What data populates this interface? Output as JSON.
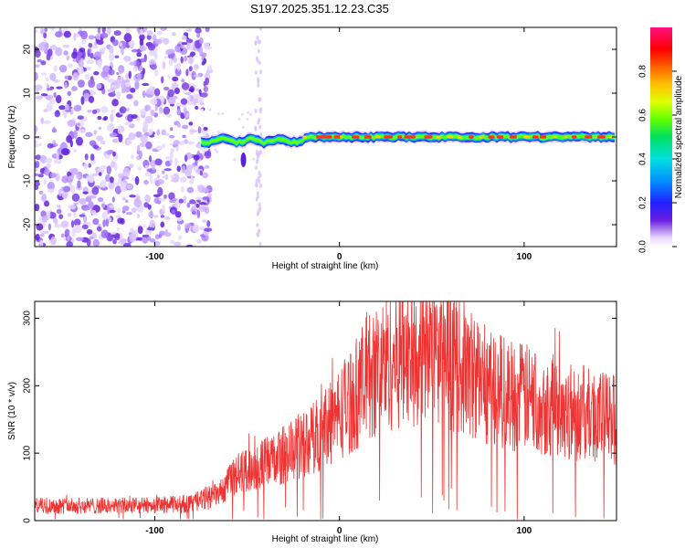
{
  "title": "S197.2025.351.12.23.C35",
  "chart_data": [
    {
      "type": "heatmap",
      "name": "spectrogram",
      "xlabel": "Height of straight line (km)",
      "ylabel": "Frequency (Hz)",
      "xlim": [
        -165,
        150
      ],
      "ylim": [
        -25,
        25
      ],
      "x_ticks": [
        -100,
        0,
        100
      ],
      "y_ticks": [
        -20,
        -10,
        0,
        10,
        20
      ],
      "noise_region_x": [
        -165,
        -70
      ],
      "signal_start_x": -75,
      "signal_freq_hz": 0,
      "colorbar": {
        "label": "Normalized spectral amplitude",
        "range": [
          0.0,
          1.0
        ],
        "ticks": [
          0.0,
          0.2,
          0.4,
          0.6,
          0.8
        ]
      }
    },
    {
      "type": "line",
      "name": "snr",
      "xlabel": "Height of straight line (km)",
      "ylabel": "SNR (10 * v/v)",
      "xlim": [
        -165,
        150
      ],
      "ylim": [
        0,
        325
      ],
      "x_ticks": [
        -100,
        0,
        100
      ],
      "y_ticks": [
        0,
        100,
        200,
        300
      ],
      "color": "#ee3333",
      "envelope_x": [
        -165,
        -110,
        -80,
        -65,
        -55,
        -45,
        -35,
        -25,
        -15,
        -5,
        5,
        15,
        25,
        35,
        45,
        55,
        65,
        75,
        90,
        110,
        130,
        150
      ],
      "envelope_y": [
        22,
        22,
        25,
        40,
        70,
        80,
        90,
        105,
        120,
        145,
        175,
        210,
        235,
        250,
        255,
        245,
        230,
        210,
        190,
        175,
        160,
        150
      ]
    }
  ]
}
